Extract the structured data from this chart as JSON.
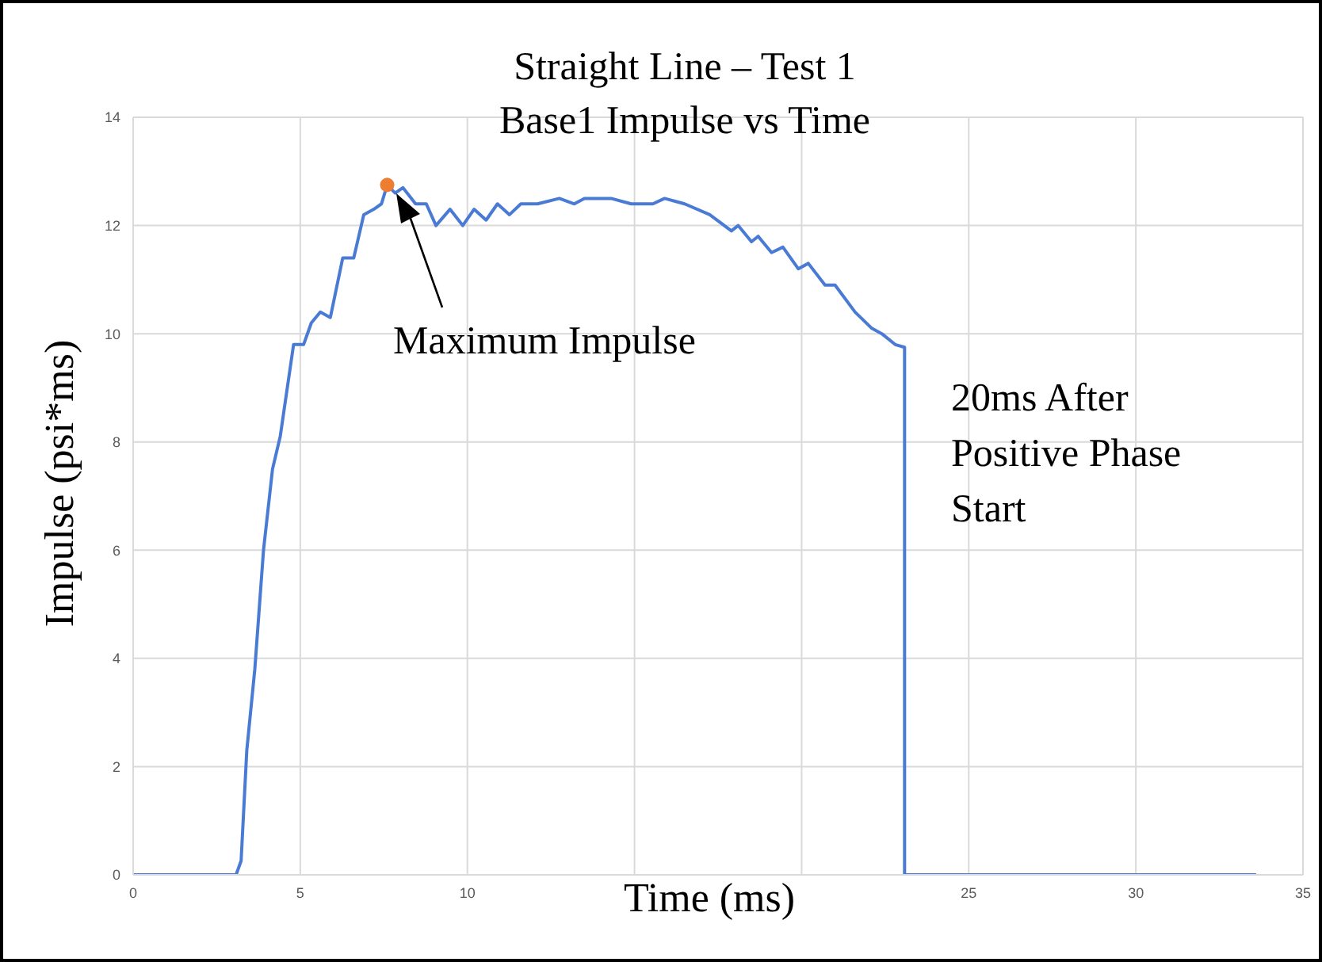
{
  "chart_data": {
    "type": "line",
    "title": "Straight Line – Test 1",
    "subtitle": "Base1 Impulse vs Time",
    "xlabel": "Time (ms)",
    "ylabel": "Impulse (psi*ms)",
    "xlim": [
      0,
      35
    ],
    "xticks": [
      0,
      5,
      10,
      {
        "value": 15,
        "label": null
      },
      {
        "value": 20,
        "label": null
      },
      25,
      30,
      35
    ],
    "ylim": [
      0,
      14
    ],
    "yticks": [
      0,
      2,
      4,
      6,
      8,
      10,
      12,
      14
    ],
    "grid": true,
    "legend": false,
    "annotations": [
      "Maximum Impulse",
      "20ms After Positive Phase Start"
    ],
    "series": [
      {
        "color": "#4a7bd4",
        "x": [
          0,
          3.08,
          3.23,
          3.4,
          3.64,
          3.9,
          4.17,
          4.4,
          4.8,
          5.1,
          5.33,
          5.6,
          5.9,
          6.27,
          6.6,
          6.9,
          7.2,
          7.43,
          7.6,
          7.84,
          8.07,
          8.45,
          8.77,
          9.06,
          9.48,
          9.86,
          10.2,
          10.56,
          10.9,
          11.26,
          11.6,
          12.1,
          12.75,
          13.2,
          13.5,
          14.3,
          14.9,
          15.55,
          15.9,
          16.5,
          17.25,
          17.9,
          18.1,
          18.5,
          18.7,
          19.1,
          19.44,
          19.9,
          20.2,
          20.7,
          21.0,
          21.6,
          22.1,
          22.4,
          22.8,
          23.08,
          23.08,
          33.6
        ],
        "values": [
          0,
          0,
          0.26,
          2.3,
          3.8,
          6.0,
          7.5,
          8.1,
          9.8,
          9.8,
          10.2,
          10.4,
          10.3,
          11.4,
          11.4,
          12.2,
          12.3,
          12.4,
          12.75,
          12.6,
          12.7,
          12.4,
          12.4,
          12.0,
          12.3,
          12.0,
          12.3,
          12.1,
          12.4,
          12.2,
          12.4,
          12.4,
          12.5,
          12.4,
          12.5,
          12.5,
          12.4,
          12.4,
          12.5,
          12.4,
          12.2,
          11.9,
          12.0,
          11.7,
          11.8,
          11.5,
          11.6,
          11.2,
          11.3,
          10.9,
          10.9,
          10.4,
          10.1,
          10.0,
          9.8,
          9.75,
          0,
          0
        ]
      },
      {
        "type": "scatter",
        "color": "#ed7d31",
        "marker": "circle",
        "x": [
          7.6
        ],
        "values": [
          12.75
        ]
      }
    ]
  }
}
